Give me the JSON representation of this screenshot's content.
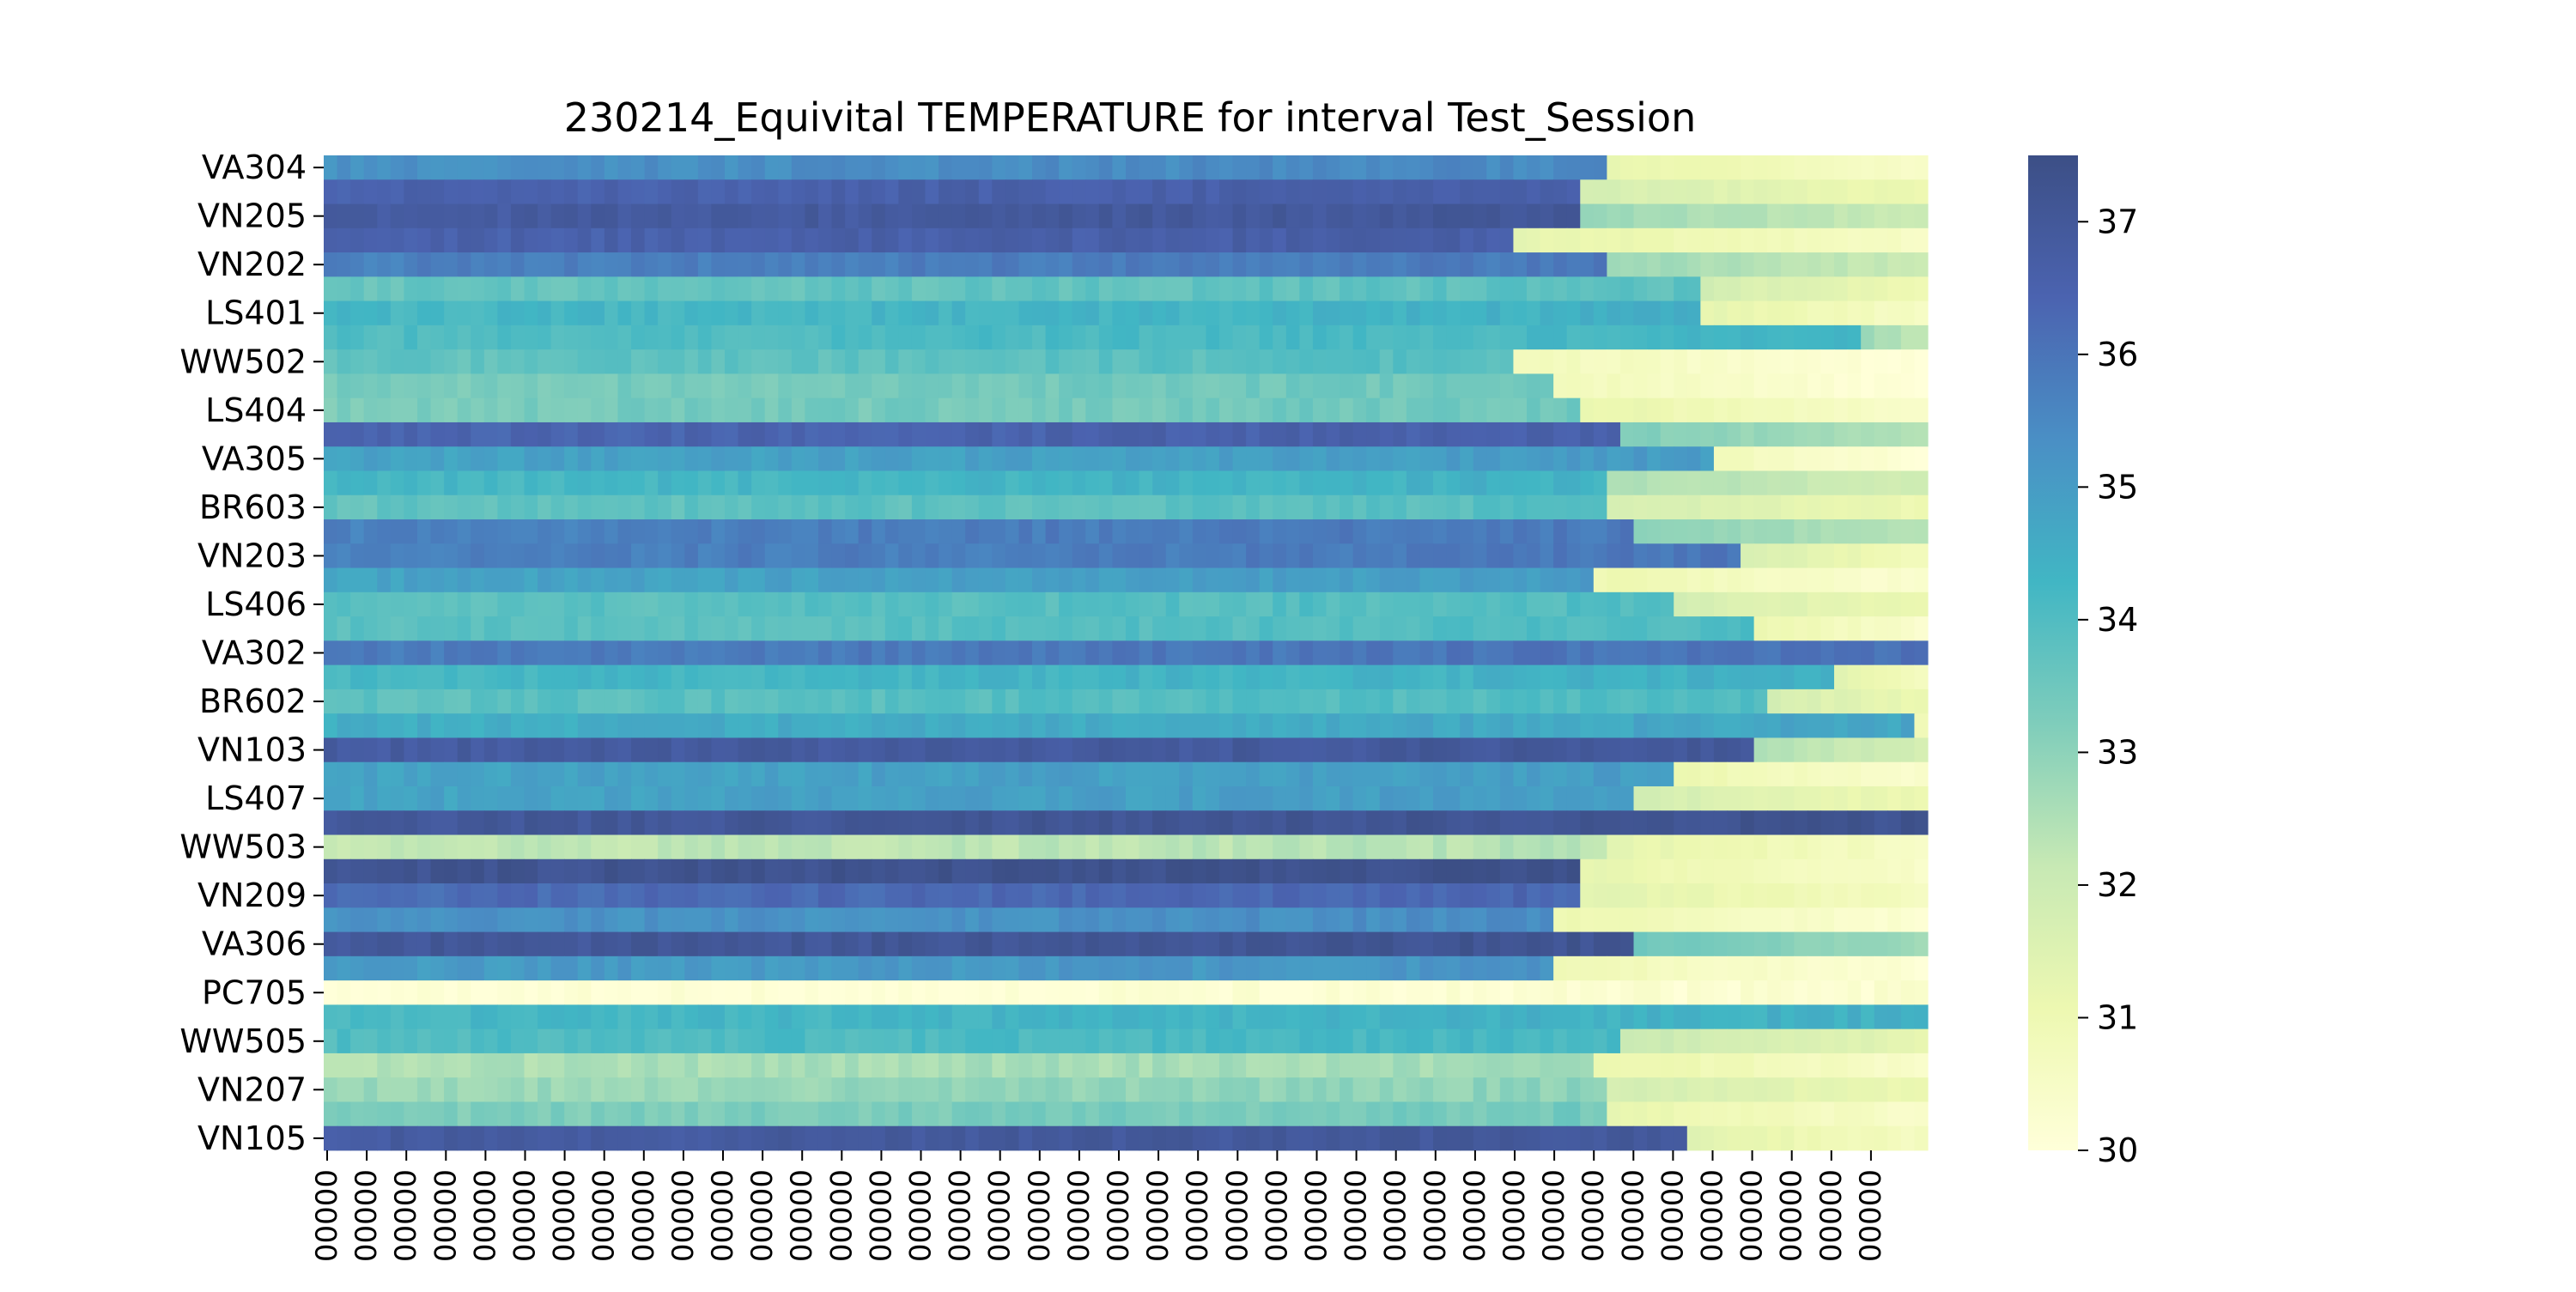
{
  "chart_data": {
    "type": "heatmap",
    "title": "230214_Equivital TEMPERATURE for interval Test_Session",
    "xlabel": "",
    "ylabel": "",
    "row_labels": [
      "VA304",
      "",
      "VN205",
      "",
      "VN202",
      "",
      "LS401",
      "",
      "WW502",
      "",
      "LS404",
      "",
      "VA305",
      "",
      "BR603",
      "",
      "VN203",
      "",
      "LS406",
      "",
      "VA302",
      "",
      "BR602",
      "",
      "VN103",
      "",
      "LS407",
      "",
      "WW503",
      "",
      "VN209",
      "",
      "VA306",
      "",
      "PC705",
      "",
      "WW505",
      "",
      "VN207",
      "",
      "VN105"
    ],
    "x_tick_labels": [
      "00000",
      "00000",
      "00000",
      "00000",
      "00000",
      "00000",
      "00000",
      "00000",
      "00000",
      "00000",
      "00000",
      "00000",
      "00000",
      "00000",
      "00000",
      "00000",
      "00000",
      "00000",
      "00000",
      "00000",
      "00000",
      "00000",
      "00000",
      "00000",
      "00000",
      "00000",
      "00000",
      "00000",
      "00000",
      "00000",
      "00000",
      "00000",
      "00000",
      "00000",
      "00000",
      "00000",
      "00000",
      "00000",
      "00000",
      "00000"
    ],
    "colorbar": {
      "min": 30,
      "max": 37.5,
      "ticks": [
        30,
        31,
        32,
        33,
        34,
        35,
        36,
        37
      ],
      "colormap": "YlGnBu",
      "colors": [
        "#ffffd9",
        "#edf8b1",
        "#c7e9b4",
        "#7fcdbb",
        "#41b6c4",
        "#4a8fc5",
        "#4b63b0",
        "#3c4f86"
      ]
    },
    "rows": [
      {
        "base": 35.3,
        "cut": 0.8,
        "tail": 30.4
      },
      {
        "base": 36.5,
        "cut": 0.78,
        "tail": 31.0
      },
      {
        "base": 36.8,
        "cut": 0.78,
        "tail": 32.0
      },
      {
        "base": 36.5,
        "cut": 0.74,
        "tail": 30.5
      },
      {
        "base": 35.7,
        "cut": 0.8,
        "tail": 32.0
      },
      {
        "base": 33.6,
        "cut": 0.86,
        "tail": 31.0
      },
      {
        "base": 34.2,
        "cut": 0.86,
        "tail": 30.5
      },
      {
        "base": 34.0,
        "cut": 0.96,
        "tail": 32.0
      },
      {
        "base": 33.7,
        "cut": 0.74,
        "tail": 30.0
      },
      {
        "base": 33.3,
        "cut": 0.77,
        "tail": 30.0
      },
      {
        "base": 33.3,
        "cut": 0.78,
        "tail": 30.4
      },
      {
        "base": 36.4,
        "cut": 0.81,
        "tail": 32.4
      },
      {
        "base": 34.8,
        "cut": 0.87,
        "tail": 30.0
      },
      {
        "base": 34.2,
        "cut": 0.8,
        "tail": 31.8
      },
      {
        "base": 33.7,
        "cut": 0.8,
        "tail": 31.0
      },
      {
        "base": 35.7,
        "cut": 0.82,
        "tail": 32.3
      },
      {
        "base": 35.7,
        "cut": 0.88,
        "tail": 30.8
      },
      {
        "base": 34.8,
        "cut": 0.79,
        "tail": 30.2
      },
      {
        "base": 33.8,
        "cut": 0.84,
        "tail": 31.0
      },
      {
        "base": 33.8,
        "cut": 0.89,
        "tail": 30.3
      },
      {
        "base": 35.8,
        "cut": 1.0,
        "tail": 36.5
      },
      {
        "base": 34.2,
        "cut": 0.94,
        "tail": 30.5
      },
      {
        "base": 33.8,
        "cut": 0.9,
        "tail": 31.0
      },
      {
        "base": 34.5,
        "cut": 0.99,
        "tail": 30.2
      },
      {
        "base": 36.8,
        "cut": 0.89,
        "tail": 31.7
      },
      {
        "base": 34.8,
        "cut": 0.84,
        "tail": 30.3
      },
      {
        "base": 34.8,
        "cut": 0.82,
        "tail": 31.0
      },
      {
        "base": 37.0,
        "cut": 1.0,
        "tail": 36.8
      },
      {
        "base": 32.2,
        "cut": 0.8,
        "tail": 30.5
      },
      {
        "base": 37.2,
        "cut": 0.78,
        "tail": 30.4
      },
      {
        "base": 36.2,
        "cut": 0.78,
        "tail": 30.6
      },
      {
        "base": 35.2,
        "cut": 0.77,
        "tail": 30.2
      },
      {
        "base": 37.0,
        "cut": 0.82,
        "tail": 32.7
      },
      {
        "base": 35.0,
        "cut": 0.77,
        "tail": 30.1
      },
      {
        "base": 30.0,
        "cut": 1.0,
        "tail": 30.0
      },
      {
        "base": 34.2,
        "cut": 1.0,
        "tail": 35.3
      },
      {
        "base": 34.0,
        "cut": 0.81,
        "tail": 31.3
      },
      {
        "base": 32.5,
        "cut": 0.79,
        "tail": 30.4
      },
      {
        "base": 32.8,
        "cut": 0.8,
        "tail": 31.0
      },
      {
        "base": 33.2,
        "cut": 0.8,
        "tail": 30.4
      },
      {
        "base": 36.8,
        "cut": 0.85,
        "tail": 30.6
      }
    ]
  }
}
